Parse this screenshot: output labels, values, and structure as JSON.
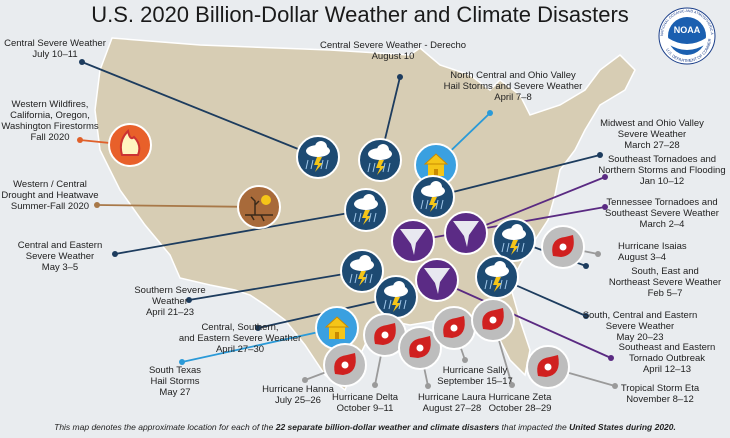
{
  "header": {
    "title": "U.S. 2020 Billion-Dollar Weather and Climate Disasters"
  },
  "logo": {
    "acronym": "NOAA",
    "ring_top": "NATIONAL OCEANIC AND ATMOSPHERIC ADMINISTRATION",
    "ring_bottom": "U.S. DEPARTMENT OF COMMERCE"
  },
  "events": [
    {
      "lines": [
        "Central Severe Weather",
        "July 10–11"
      ]
    },
    {
      "lines": [
        "Central Severe Weather - Derecho",
        "August 10"
      ]
    },
    {
      "lines": [
        "North Central and Ohio Valley",
        "Hail Storms and Severe Weather",
        "April 7–8"
      ]
    },
    {
      "lines": [
        "Western Wildfires,",
        "California, Oregon,",
        "Washington Firestorms",
        "Fall 2020"
      ]
    },
    {
      "lines": [
        "Midwest and Ohio Valley",
        "Severe Weather",
        "March 27–28"
      ]
    },
    {
      "lines": [
        "Southeast Tornadoes and",
        "Northern Storms and Flooding",
        "Jan 10–12"
      ]
    },
    {
      "lines": [
        "Western / Central",
        "Drought and Heatwave",
        "Summer-Fall 2020"
      ]
    },
    {
      "lines": [
        "Tennessee Tornadoes and",
        "Southeast Severe Weather",
        "March 2–4"
      ]
    },
    {
      "lines": [
        "Central and Eastern",
        "Severe Weather",
        "May 3–5"
      ]
    },
    {
      "lines": [
        "Hurricane Isaias",
        "August 3–4"
      ]
    },
    {
      "lines": [
        "South, East and",
        "Northeast Severe Weather",
        "Feb 5–7"
      ]
    },
    {
      "lines": [
        "Southern Severe",
        "Weather",
        "April 21–23"
      ]
    },
    {
      "lines": [
        "Central, Southern,",
        "and Eastern Severe Weather",
        "April 27–30"
      ]
    },
    {
      "lines": [
        "South, Central and Eastern",
        "Severe Weather",
        "May 20–23"
      ]
    },
    {
      "lines": [
        "South Texas",
        "Hail Storms",
        "May 27"
      ]
    },
    {
      "lines": [
        "Hurricane Hanna",
        "July 25–26"
      ]
    },
    {
      "lines": [
        "Hurricane Delta",
        "October 9–11"
      ]
    },
    {
      "lines": [
        "Hurricane Laura",
        "August 27–28"
      ]
    },
    {
      "lines": [
        "Hurricane Sally",
        "September 15–17"
      ]
    },
    {
      "lines": [
        "Hurricane Zeta",
        "October 28–29"
      ]
    },
    {
      "lines": [
        "Southeast and Eastern",
        "Tornado Outbreak",
        "April 12–13"
      ]
    },
    {
      "lines": [
        "Tropical Storm Eta",
        "November 8–12"
      ]
    }
  ],
  "footnote": {
    "parts": [
      "This map denotes the approximate location for each of the ",
      "22 separate billion-dollar weather and climate disasters",
      " that impacted the ",
      "United States during 2020."
    ]
  }
}
